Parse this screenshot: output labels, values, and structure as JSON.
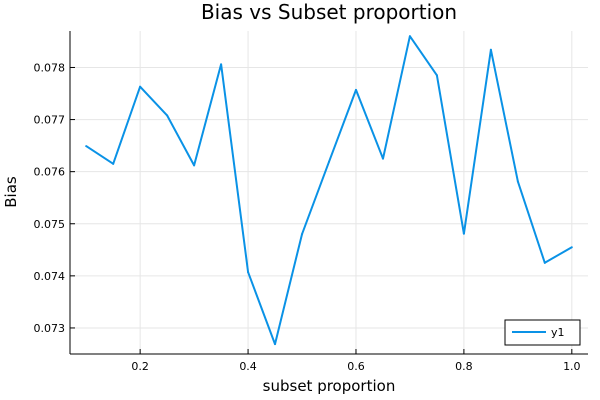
{
  "chart_data": {
    "type": "line",
    "title": "Bias vs Subset proportion",
    "xlabel": "subset proportion",
    "ylabel": "Bias",
    "xlim": [
      0.07,
      1.03
    ],
    "ylim": [
      0.0725,
      0.0787
    ],
    "xticks": [
      0.2,
      0.4,
      0.6,
      0.8,
      1.0
    ],
    "xtick_labels": [
      "0.2",
      "0.4",
      "0.6",
      "0.8",
      "1.0"
    ],
    "yticks": [
      0.073,
      0.074,
      0.075,
      0.076,
      0.077,
      0.078
    ],
    "ytick_labels": [
      "0.073",
      "0.074",
      "0.075",
      "0.076",
      "0.077",
      "0.078"
    ],
    "grid": true,
    "legend_position": "bottom-right",
    "series": [
      {
        "name": "y1",
        "color": "#0a92e6",
        "x": [
          0.1,
          0.15,
          0.2,
          0.25,
          0.3,
          0.35,
          0.4,
          0.45,
          0.5,
          0.55,
          0.6,
          0.65,
          0.7,
          0.75,
          0.8,
          0.85,
          0.9,
          0.95,
          1.0
        ],
        "y": [
          0.07649,
          0.07615,
          0.07763,
          0.07708,
          0.07612,
          0.07806,
          0.07407,
          0.07269,
          0.0748,
          0.07619,
          0.07757,
          0.07625,
          0.0786,
          0.07785,
          0.07481,
          0.07834,
          0.07581,
          0.07425,
          0.07455
        ]
      }
    ]
  }
}
